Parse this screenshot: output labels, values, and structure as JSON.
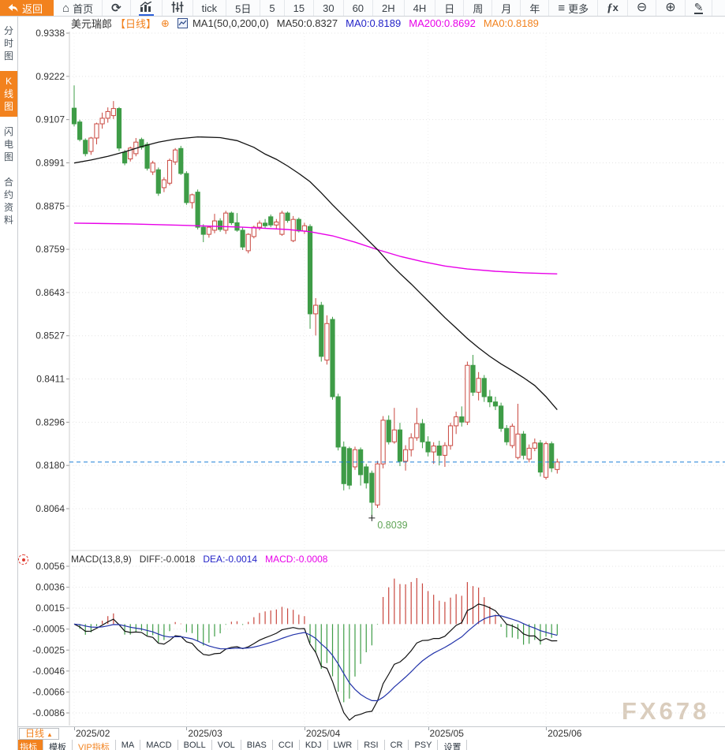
{
  "toolbar": {
    "back_label": "返回",
    "items": [
      {
        "name": "home-button",
        "icon": "home",
        "label": "首页"
      },
      {
        "name": "refresh-button",
        "icon": "refresh",
        "label": ""
      },
      {
        "name": "bar-chart-button",
        "icon": "bar-chart",
        "label": "",
        "active_chart": true
      },
      {
        "name": "candlestick-button",
        "icon": "candles",
        "label": ""
      },
      {
        "name": "interval-tick",
        "label": "tick"
      },
      {
        "name": "interval-5d",
        "label": "5日"
      },
      {
        "name": "interval-5m",
        "label": "5"
      },
      {
        "name": "interval-15m",
        "label": "15"
      },
      {
        "name": "interval-30m",
        "label": "30"
      },
      {
        "name": "interval-60m",
        "label": "60"
      },
      {
        "name": "interval-2h",
        "label": "2H"
      },
      {
        "name": "interval-4h",
        "label": "4H"
      },
      {
        "name": "interval-day",
        "label": "日"
      },
      {
        "name": "interval-week",
        "label": "周"
      },
      {
        "name": "interval-month",
        "label": "月"
      },
      {
        "name": "interval-year",
        "label": "年"
      },
      {
        "name": "more-button",
        "icon": "menu",
        "label": "更多"
      },
      {
        "name": "formula-button",
        "icon": "fx",
        "label": ""
      },
      {
        "name": "zoom-out-button",
        "icon": "zoom-out",
        "label": ""
      },
      {
        "name": "zoom-in-button",
        "icon": "zoom-in",
        "label": ""
      },
      {
        "name": "draw-button",
        "icon": "pencil",
        "label": ""
      }
    ]
  },
  "sidebar": {
    "items": [
      {
        "name": "sidebar-item-time-chart",
        "label": "分时图",
        "active": false
      },
      {
        "name": "sidebar-item-kline-chart",
        "label": "K线图",
        "active": true
      },
      {
        "name": "sidebar-item-lightning-chart",
        "label": "闪电图",
        "active": false
      },
      {
        "name": "sidebar-item-contract-info",
        "label": "合约资料",
        "active": false
      }
    ]
  },
  "title_bar": {
    "symbol": "美元瑞郎",
    "period_tag": "【日线】",
    "ma_settings": "MA1(50,0,200,0)",
    "ma_values": [
      {
        "text": "MA50:0.8327",
        "color": "#333333"
      },
      {
        "text": "MA0:0.8189",
        "color": "#2323c8"
      },
      {
        "text": "MA200:0.8692",
        "color": "#e800e8"
      },
      {
        "text": "MA0:0.8189",
        "color": "#f2821e"
      }
    ]
  },
  "macd_bar": {
    "label": "MACD(13,8,9)",
    "values": [
      {
        "text": "DIFF:-0.0018",
        "color": "#333333"
      },
      {
        "text": "DEA:-0.0014",
        "color": "#2323c8"
      },
      {
        "text": "MACD:-0.0008",
        "color": "#e800e8"
      }
    ]
  },
  "xaxis": {
    "period_label": "日线",
    "period_arrow": "▲"
  },
  "tabbar": {
    "tabs": [
      {
        "name": "tab-indicators",
        "label": "指标",
        "active": true
      },
      {
        "name": "tab-templates",
        "label": "模板"
      },
      {
        "name": "tab-vip-indicators",
        "label": "VIP指标",
        "vip": true
      },
      {
        "name": "tab-ma",
        "label": "MA"
      },
      {
        "name": "tab-macd",
        "label": "MACD"
      },
      {
        "name": "tab-boll",
        "label": "BOLL"
      },
      {
        "name": "tab-vol",
        "label": "VOL"
      },
      {
        "name": "tab-bias",
        "label": "BIAS"
      },
      {
        "name": "tab-cci",
        "label": "CCI"
      },
      {
        "name": "tab-kdj",
        "label": "KDJ"
      },
      {
        "name": "tab-lwr",
        "label": "LWR"
      },
      {
        "name": "tab-rsi",
        "label": "RSI"
      },
      {
        "name": "tab-cr",
        "label": "CR"
      },
      {
        "name": "tab-psy",
        "label": "PSY"
      },
      {
        "name": "tab-settings",
        "label": "设置"
      }
    ]
  },
  "watermark": {
    "text": "FX678"
  },
  "chart_data": {
    "type": "candlestick",
    "symbol": "美元瑞郎",
    "period": "日线",
    "price_axis_labels": [
      "0.9338",
      "0.9222",
      "0.9107",
      "0.8991",
      "0.8875",
      "0.8759",
      "0.8643",
      "0.8527",
      "0.8411",
      "0.8296",
      "0.8180",
      "0.8064"
    ],
    "price_axis_range": [
      0.9338,
      0.8064
    ],
    "macd_axis_labels": [
      "0.0056",
      "0.0036",
      "0.0015",
      "-0.0005",
      "-0.0025",
      "-0.0046",
      "-0.0066",
      "-0.0086"
    ],
    "macd_axis_range": [
      0.0056,
      -0.0086
    ],
    "x_ticks": [
      {
        "label": "2025/02",
        "index": 0
      },
      {
        "label": "2025/03",
        "index": 20
      },
      {
        "label": "2025/04",
        "index": 41
      },
      {
        "label": "2025/05",
        "index": 63
      },
      {
        "label": "2025/06",
        "index": 84
      }
    ],
    "ohlc": [
      [
        0.9137,
        0.9198,
        0.9088,
        0.9095
      ],
      [
        0.91,
        0.9106,
        0.9048,
        0.9053
      ],
      [
        0.9051,
        0.9056,
        0.9008,
        0.9015
      ],
      [
        0.9021,
        0.906,
        0.9012,
        0.9057
      ],
      [
        0.9057,
        0.9098,
        0.904,
        0.9095
      ],
      [
        0.9095,
        0.9125,
        0.9082,
        0.911
      ],
      [
        0.911,
        0.9139,
        0.9098,
        0.9128
      ],
      [
        0.9117,
        0.9156,
        0.9108,
        0.9136
      ],
      [
        0.9136,
        0.914,
        0.9022,
        0.903
      ],
      [
        0.9019,
        0.9025,
        0.8984,
        0.899
      ],
      [
        0.9001,
        0.9034,
        0.8994,
        0.903
      ],
      [
        0.9015,
        0.9057,
        0.9008,
        0.9046
      ],
      [
        0.9053,
        0.9058,
        0.9026,
        0.9032
      ],
      [
        0.904,
        0.9046,
        0.897,
        0.8976
      ],
      [
        0.8966,
        0.8996,
        0.8958,
        0.899
      ],
      [
        0.8972,
        0.8978,
        0.8902,
        0.8909
      ],
      [
        0.8924,
        0.8952,
        0.8912,
        0.8945
      ],
      [
        0.8936,
        0.9002,
        0.893,
        0.8997
      ],
      [
        0.8993,
        0.903,
        0.8985,
        0.9025
      ],
      [
        0.9029,
        0.9036,
        0.8958,
        0.8962
      ],
      [
        0.8962,
        0.8968,
        0.8878,
        0.8884
      ],
      [
        0.8884,
        0.8908,
        0.8868,
        0.8905
      ],
      [
        0.8912,
        0.8919,
        0.8812,
        0.8818
      ],
      [
        0.8818,
        0.8826,
        0.8778,
        0.8799
      ],
      [
        0.8799,
        0.8822,
        0.879,
        0.8818
      ],
      [
        0.881,
        0.8854,
        0.8802,
        0.8835
      ],
      [
        0.8835,
        0.8842,
        0.8806,
        0.8812
      ],
      [
        0.881,
        0.8862,
        0.88,
        0.8856
      ],
      [
        0.8856,
        0.886,
        0.8824,
        0.883
      ],
      [
        0.883,
        0.8856,
        0.8806,
        0.881
      ],
      [
        0.881,
        0.8818,
        0.8757,
        0.8765
      ],
      [
        0.8755,
        0.8802,
        0.8748,
        0.8799
      ],
      [
        0.8793,
        0.8822,
        0.8788,
        0.8818
      ],
      [
        0.8818,
        0.8836,
        0.881,
        0.8829
      ],
      [
        0.8829,
        0.884,
        0.8815,
        0.8822
      ],
      [
        0.8846,
        0.8852,
        0.8818,
        0.8824
      ],
      [
        0.8824,
        0.884,
        0.8812,
        0.8832
      ],
      [
        0.8799,
        0.8862,
        0.8795,
        0.8856
      ],
      [
        0.8856,
        0.886,
        0.883,
        0.8836
      ],
      [
        0.8782,
        0.8848,
        0.8778,
        0.8839
      ],
      [
        0.8839,
        0.8844,
        0.8804,
        0.8808
      ],
      [
        0.8808,
        0.883,
        0.88,
        0.8822
      ],
      [
        0.882,
        0.8826,
        0.8546,
        0.8586
      ],
      [
        0.8586,
        0.8628,
        0.8528,
        0.8609
      ],
      [
        0.8609,
        0.8618,
        0.8458,
        0.8472
      ],
      [
        0.8462,
        0.8582,
        0.845,
        0.856
      ],
      [
        0.8571,
        0.8578,
        0.8356,
        0.8364
      ],
      [
        0.8364,
        0.8372,
        0.822,
        0.8229
      ],
      [
        0.8229,
        0.8244,
        0.8113,
        0.8131
      ],
      [
        0.8225,
        0.823,
        0.8116,
        0.8127
      ],
      [
        0.8176,
        0.823,
        0.8168,
        0.8222
      ],
      [
        0.8222,
        0.8228,
        0.8126,
        0.8155
      ],
      [
        0.8176,
        0.8184,
        0.8118,
        0.8133
      ],
      [
        0.8159,
        0.8166,
        0.8039,
        0.8081
      ],
      [
        0.8074,
        0.8192,
        0.8066,
        0.8184
      ],
      [
        0.8184,
        0.8312,
        0.8172,
        0.8301
      ],
      [
        0.8301,
        0.8314,
        0.8236,
        0.8243
      ],
      [
        0.8243,
        0.8334,
        0.8238,
        0.8275
      ],
      [
        0.8275,
        0.8294,
        0.8178,
        0.8191
      ],
      [
        0.8191,
        0.8234,
        0.8166,
        0.8222
      ],
      [
        0.8222,
        0.8266,
        0.8204,
        0.8254
      ],
      [
        0.8254,
        0.8334,
        0.8246,
        0.8292
      ],
      [
        0.8292,
        0.8304,
        0.8226,
        0.8243
      ],
      [
        0.8243,
        0.8258,
        0.8204,
        0.8216
      ],
      [
        0.8216,
        0.8242,
        0.8184,
        0.8232
      ],
      [
        0.8232,
        0.8246,
        0.818,
        0.8207
      ],
      [
        0.8207,
        0.8242,
        0.8176,
        0.8233
      ],
      [
        0.8233,
        0.8294,
        0.8222,
        0.8286
      ],
      [
        0.8286,
        0.8324,
        0.8264,
        0.831
      ],
      [
        0.831,
        0.8338,
        0.8284,
        0.8296
      ],
      [
        0.8296,
        0.8458,
        0.8288,
        0.8448
      ],
      [
        0.8448,
        0.8476,
        0.8366,
        0.8376
      ],
      [
        0.8376,
        0.843,
        0.8354,
        0.8413
      ],
      [
        0.8413,
        0.8422,
        0.835,
        0.8364
      ],
      [
        0.8364,
        0.8382,
        0.8336,
        0.835
      ],
      [
        0.835,
        0.8364,
        0.8328,
        0.8339
      ],
      [
        0.8339,
        0.8348,
        0.827,
        0.8279
      ],
      [
        0.8279,
        0.8288,
        0.8234,
        0.8243
      ],
      [
        0.8233,
        0.8292,
        0.8226,
        0.8285
      ],
      [
        0.8201,
        0.8345,
        0.8196,
        0.8264
      ],
      [
        0.8264,
        0.8272,
        0.8196,
        0.8207
      ],
      [
        0.8197,
        0.8236,
        0.8188,
        0.8226
      ],
      [
        0.8226,
        0.8252,
        0.8218,
        0.824
      ],
      [
        0.824,
        0.8248,
        0.815,
        0.8162
      ],
      [
        0.8148,
        0.8244,
        0.8142,
        0.8238
      ],
      [
        0.8238,
        0.8244,
        0.8162,
        0.8173
      ],
      [
        0.8169,
        0.8198,
        0.8158,
        0.8189
      ]
    ],
    "ma50_points": [
      [
        0,
        0.899
      ],
      [
        3,
        0.8998
      ],
      [
        6,
        0.9008
      ],
      [
        9,
        0.902
      ],
      [
        12,
        0.9034
      ],
      [
        15,
        0.9046
      ],
      [
        18,
        0.9054
      ],
      [
        22,
        0.906
      ],
      [
        26,
        0.9058
      ],
      [
        29,
        0.905
      ],
      [
        32,
        0.9032
      ],
      [
        34,
        0.9014
      ],
      [
        36,
        0.9
      ],
      [
        38,
        0.8982
      ],
      [
        40,
        0.8962
      ],
      [
        42,
        0.894
      ],
      [
        44,
        0.891
      ],
      [
        46,
        0.8878
      ],
      [
        48,
        0.8848
      ],
      [
        50,
        0.8818
      ],
      [
        52,
        0.8788
      ],
      [
        54,
        0.8758
      ],
      [
        56,
        0.8724
      ],
      [
        58,
        0.8694
      ],
      [
        60,
        0.8666
      ],
      [
        62,
        0.8636
      ],
      [
        64,
        0.8606
      ],
      [
        66,
        0.8576
      ],
      [
        68,
        0.8548
      ],
      [
        70,
        0.852
      ],
      [
        72,
        0.8495
      ],
      [
        74,
        0.8472
      ],
      [
        76,
        0.8452
      ],
      [
        78,
        0.8434
      ],
      [
        80,
        0.8415
      ],
      [
        82,
        0.8394
      ],
      [
        84,
        0.8364
      ],
      [
        86,
        0.8329
      ]
    ],
    "ma200_points": [
      [
        0,
        0.8829
      ],
      [
        10,
        0.8827
      ],
      [
        20,
        0.8823
      ],
      [
        30,
        0.8818
      ],
      [
        38,
        0.8812
      ],
      [
        42,
        0.8806
      ],
      [
        46,
        0.8795
      ],
      [
        50,
        0.8778
      ],
      [
        54,
        0.8758
      ],
      [
        58,
        0.874
      ],
      [
        62,
        0.8726
      ],
      [
        66,
        0.8714
      ],
      [
        70,
        0.8706
      ],
      [
        75,
        0.87
      ],
      [
        80,
        0.8696
      ],
      [
        86,
        0.8693
      ]
    ],
    "ma_display": {
      "ma50": 0.8327,
      "ma200": 0.8692
    },
    "last_price": 0.8189,
    "low_annotation": {
      "index": 53,
      "price": 0.8039,
      "label": "0.8039"
    },
    "macd_params": [
      13,
      8,
      9
    ],
    "macd_display": {
      "diff": -0.0018,
      "dea": -0.0014,
      "macd": -0.0008
    },
    "colors": {
      "up": "#c9473f",
      "down": "#3e9c47",
      "ma50": "#111111",
      "ma200": "#e800e8",
      "diff": "#111111",
      "dea": "#2233aa",
      "last_price_line": "#1b7fd6",
      "grid": "#e4e4e4",
      "axis_text": "#333333",
      "low_label": "#5fa455",
      "accent": "#f2821e"
    },
    "legend_position": "top-left",
    "grid": true
  }
}
